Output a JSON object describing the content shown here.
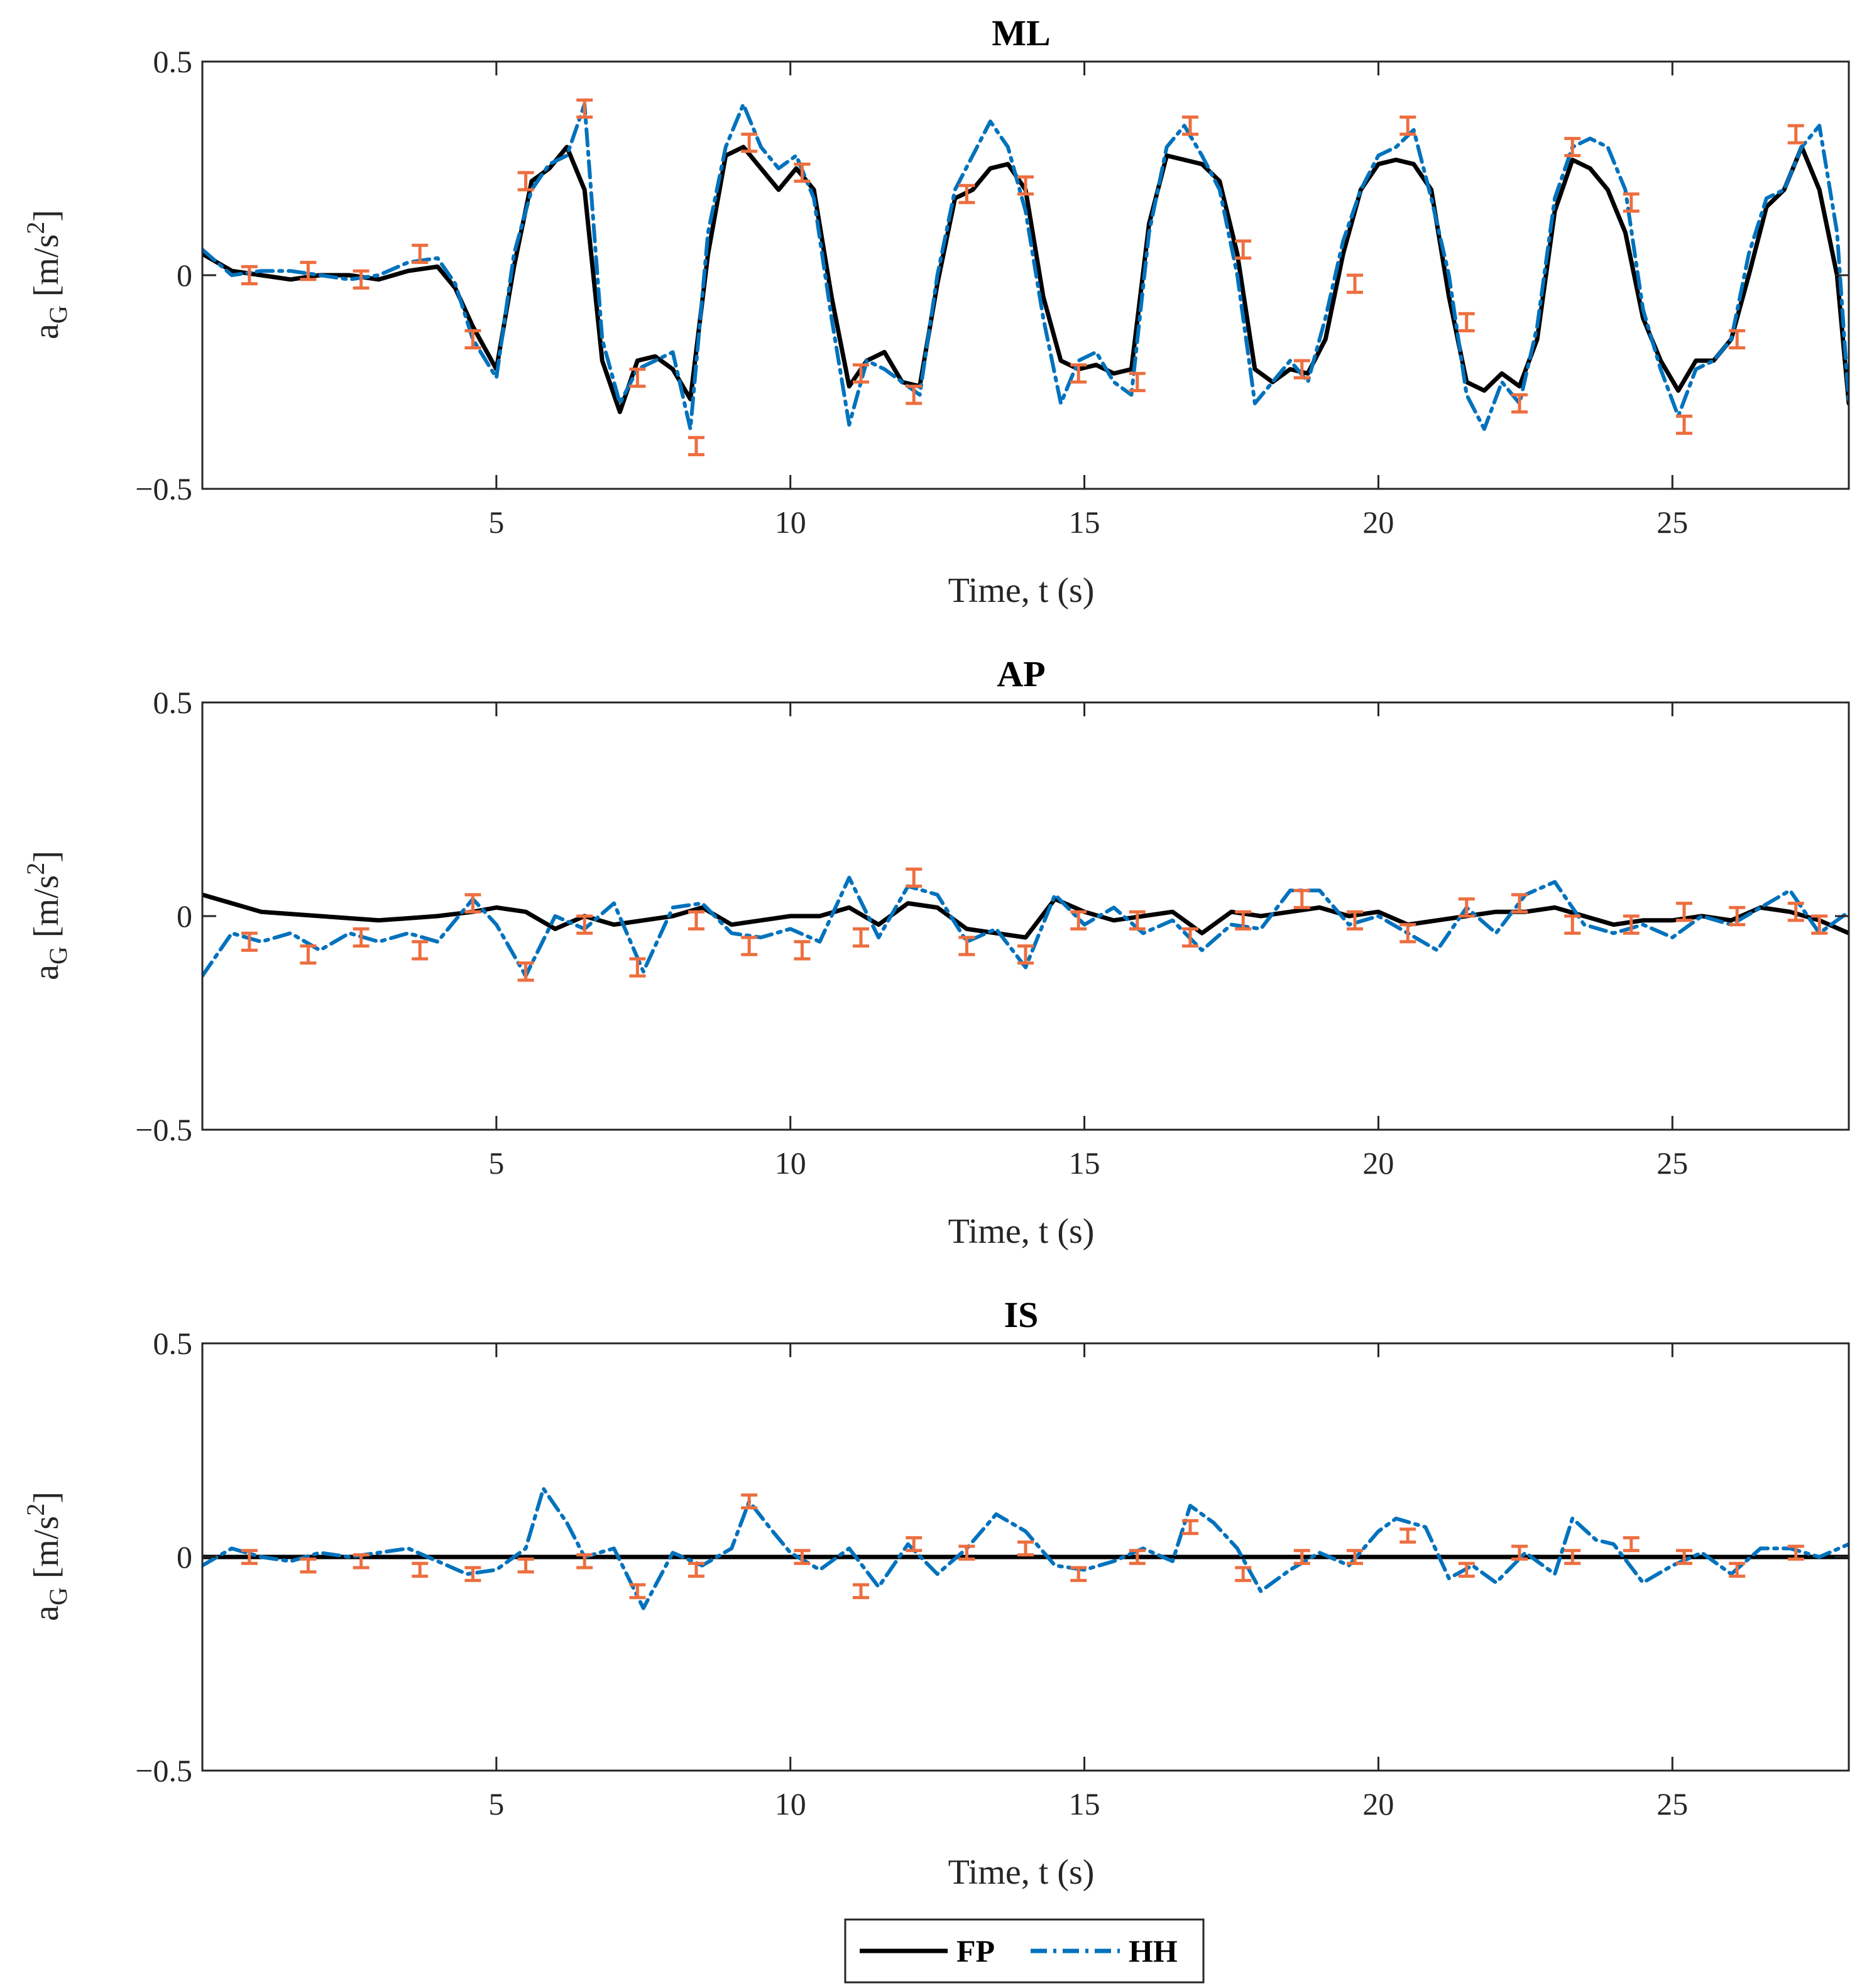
{
  "legend": {
    "fp_label": "FP",
    "hh_label": "HH"
  },
  "colors": {
    "fp": "#000000",
    "hh": "#0072BD",
    "errorbar": "#ED6E3F",
    "axis": "#262626"
  },
  "chart_data": [
    {
      "type": "line",
      "title": "ML",
      "xlabel": "Time, t (s)",
      "ylabel_base": "a",
      "ylabel_sub": "G",
      "ylabel_unit": "[m/s",
      "ylabel_sup": "2",
      "ylabel_close": "]",
      "xlim": [
        0,
        28
      ],
      "ylim": [
        -0.5,
        0.5
      ],
      "xticks": [
        5,
        10,
        15,
        20,
        25
      ],
      "xtick_labels": [
        "5",
        "10",
        "15",
        "20",
        "25"
      ],
      "yticks": [
        -0.5,
        0,
        0.5
      ],
      "ytick_labels": [
        "−0.5",
        "0",
        "0.5"
      ],
      "series": [
        {
          "name": "FP",
          "x": [
            0,
            0.5,
            1,
            1.5,
            2,
            2.5,
            3,
            3.5,
            4,
            4.3,
            4.6,
            5,
            5.3,
            5.6,
            5.9,
            6.2,
            6.5,
            6.8,
            7.1,
            7.4,
            7.7,
            8,
            8.3,
            8.6,
            8.9,
            9.2,
            9.5,
            9.8,
            10.1,
            10.4,
            10.7,
            11,
            11.3,
            11.6,
            11.9,
            12.2,
            12.5,
            12.8,
            13.1,
            13.4,
            13.7,
            14,
            14.3,
            14.6,
            14.9,
            15.2,
            15.5,
            15.8,
            16.1,
            16.4,
            16.7,
            17,
            17.3,
            17.6,
            17.9,
            18.2,
            18.5,
            18.8,
            19.1,
            19.4,
            19.7,
            20,
            20.3,
            20.6,
            20.9,
            21.2,
            21.5,
            21.8,
            22.1,
            22.4,
            22.7,
            23,
            23.3,
            23.6,
            23.9,
            24.2,
            24.5,
            24.8,
            25.1,
            25.4,
            25.7,
            26,
            26.3,
            26.6,
            26.9,
            27.2,
            27.5,
            27.8,
            28
          ],
          "values": [
            0.05,
            0.01,
            0,
            -0.01,
            0,
            0,
            -0.01,
            0.01,
            0.02,
            -0.03,
            -0.12,
            -0.22,
            0.02,
            0.22,
            0.25,
            0.3,
            0.2,
            -0.2,
            -0.32,
            -0.2,
            -0.19,
            -0.22,
            -0.29,
            0.05,
            0.28,
            0.3,
            0.25,
            0.2,
            0.25,
            0.2,
            -0.05,
            -0.26,
            -0.2,
            -0.18,
            -0.25,
            -0.26,
            -0.02,
            0.18,
            0.2,
            0.25,
            0.26,
            0.2,
            -0.05,
            -0.2,
            -0.22,
            -0.21,
            -0.23,
            -0.22,
            0.12,
            0.28,
            0.27,
            0.26,
            0.22,
            0.05,
            -0.22,
            -0.25,
            -0.22,
            -0.23,
            -0.15,
            0.05,
            0.2,
            0.26,
            0.27,
            0.26,
            0.2,
            -0.05,
            -0.25,
            -0.27,
            -0.23,
            -0.26,
            -0.15,
            0.15,
            0.27,
            0.25,
            0.2,
            0.1,
            -0.1,
            -0.2,
            -0.27,
            -0.2,
            -0.2,
            -0.15,
            0,
            0.16,
            0.2,
            0.3,
            0.2,
            0,
            -0.3
          ]
        },
        {
          "name": "HH",
          "x": [
            0,
            0.5,
            1,
            1.5,
            2,
            2.5,
            3,
            3.5,
            4,
            4.3,
            4.6,
            5,
            5.3,
            5.6,
            5.9,
            6.2,
            6.5,
            6.8,
            7.1,
            7.4,
            7.7,
            8,
            8.3,
            8.6,
            8.9,
            9.2,
            9.5,
            9.8,
            10.1,
            10.4,
            10.7,
            11,
            11.3,
            11.6,
            11.9,
            12.2,
            12.5,
            12.8,
            13.1,
            13.4,
            13.7,
            14,
            14.3,
            14.6,
            14.9,
            15.2,
            15.5,
            15.8,
            16.1,
            16.4,
            16.7,
            17,
            17.3,
            17.6,
            17.9,
            18.2,
            18.5,
            18.8,
            19.1,
            19.4,
            19.7,
            20,
            20.3,
            20.6,
            20.9,
            21.2,
            21.5,
            21.8,
            22.1,
            22.4,
            22.7,
            23,
            23.3,
            23.6,
            23.9,
            24.2,
            24.5,
            24.8,
            25.1,
            25.4,
            25.7,
            26,
            26.3,
            26.6,
            26.9,
            27.2,
            27.5,
            27.8,
            28
          ],
          "values": [
            0.06,
            0,
            0.01,
            0.01,
            0,
            -0.01,
            0,
            0.03,
            0.04,
            -0.02,
            -0.15,
            -0.24,
            0.05,
            0.2,
            0.26,
            0.28,
            0.4,
            -0.15,
            -0.3,
            -0.22,
            -0.2,
            -0.18,
            -0.36,
            0.1,
            0.3,
            0.4,
            0.3,
            0.25,
            0.28,
            0.18,
            -0.1,
            -0.35,
            -0.2,
            -0.22,
            -0.25,
            -0.28,
            0,
            0.2,
            0.28,
            0.36,
            0.3,
            0.15,
            -0.1,
            -0.3,
            -0.2,
            -0.18,
            -0.25,
            -0.28,
            0.1,
            0.3,
            0.35,
            0.28,
            0.2,
            0,
            -0.3,
            -0.25,
            -0.2,
            -0.25,
            -0.1,
            0.08,
            0.2,
            0.28,
            0.3,
            0.34,
            0.18,
            0,
            -0.28,
            -0.36,
            -0.25,
            -0.3,
            -0.12,
            0.18,
            0.3,
            0.32,
            0.3,
            0.2,
            -0.08,
            -0.22,
            -0.33,
            -0.22,
            -0.2,
            -0.15,
            0.05,
            0.18,
            0.2,
            0.3,
            0.35,
            0.1,
            -0.3
          ]
        }
      ],
      "errorbars": {
        "x": [
          0.8,
          1.8,
          2.7,
          3.7,
          4.6,
          5.5,
          6.5,
          7.4,
          8.4,
          9.3,
          10.2,
          11.2,
          12.1,
          13,
          14,
          14.9,
          15.9,
          16.8,
          17.7,
          18.7,
          19.6,
          20.5,
          21.5,
          22.4,
          23.3,
          24.3,
          25.2,
          26.1,
          27.1
        ],
        "y": [
          0,
          0.01,
          -0.01,
          0.05,
          -0.15,
          0.22,
          0.39,
          -0.24,
          -0.4,
          0.31,
          0.24,
          -0.23,
          -0.28,
          0.19,
          0.21,
          -0.23,
          -0.25,
          0.35,
          0.06,
          -0.22,
          -0.02,
          0.35,
          -0.11,
          -0.3,
          0.3,
          0.17,
          -0.35,
          -0.15,
          0.33
        ],
        "err": [
          0.02,
          0.02,
          0.02,
          0.02,
          0.02,
          0.02,
          0.02,
          0.02,
          0.02,
          0.02,
          0.02,
          0.02,
          0.02,
          0.02,
          0.02,
          0.02,
          0.02,
          0.02,
          0.02,
          0.02,
          0.02,
          0.02,
          0.02,
          0.02,
          0.02,
          0.02,
          0.02,
          0.02,
          0.02
        ]
      }
    },
    {
      "type": "line",
      "title": "AP",
      "xlabel": "Time, t (s)",
      "ylabel_base": "a",
      "ylabel_sub": "G",
      "ylabel_unit": "[m/s",
      "ylabel_sup": "2",
      "ylabel_close": "]",
      "xlim": [
        0,
        28
      ],
      "ylim": [
        -0.5,
        0.5
      ],
      "xticks": [
        5,
        10,
        15,
        20,
        25
      ],
      "xtick_labels": [
        "5",
        "10",
        "15",
        "20",
        "25"
      ],
      "yticks": [
        -0.5,
        0,
        0.5
      ],
      "ytick_labels": [
        "−0.5",
        "0",
        "0.5"
      ],
      "series": [
        {
          "name": "FP",
          "x": [
            0,
            1,
            2,
            3,
            4,
            4.6,
            5,
            5.5,
            6,
            6.5,
            7,
            7.5,
            8,
            8.5,
            9,
            9.5,
            10,
            10.5,
            11,
            11.5,
            12,
            12.5,
            13,
            13.5,
            14,
            14.5,
            15,
            15.5,
            16,
            16.5,
            17,
            17.5,
            18,
            18.5,
            19,
            19.5,
            20,
            20.5,
            21,
            21.5,
            22,
            22.5,
            23,
            23.5,
            24,
            24.5,
            25,
            25.5,
            26,
            26.5,
            27,
            27.5,
            28
          ],
          "values": [
            0.05,
            0.01,
            0,
            -0.01,
            0,
            0.01,
            0.02,
            0.01,
            -0.03,
            0,
            -0.02,
            -0.01,
            0,
            0.02,
            -0.02,
            -0.01,
            0,
            0,
            0.02,
            -0.02,
            0.03,
            0.02,
            -0.03,
            -0.04,
            -0.05,
            0.04,
            0.01,
            -0.01,
            0,
            0.01,
            -0.04,
            0.01,
            0,
            0.01,
            0.02,
            0,
            0.01,
            -0.02,
            -0.01,
            0,
            0.01,
            0.01,
            0.02,
            0,
            -0.02,
            -0.01,
            -0.01,
            0,
            -0.01,
            0.02,
            0.01,
            -0.01,
            -0.04
          ]
        },
        {
          "name": "HH",
          "x": [
            0,
            0.5,
            1,
            1.5,
            2,
            2.5,
            3,
            3.5,
            4,
            4.6,
            5,
            5.5,
            6,
            6.5,
            7,
            7.5,
            8,
            8.5,
            9,
            9.5,
            10,
            10.5,
            11,
            11.5,
            12,
            12.5,
            13,
            13.5,
            14,
            14.5,
            15,
            15.5,
            16,
            16.5,
            17,
            17.5,
            18,
            18.5,
            19,
            19.5,
            20,
            20.5,
            21,
            21.5,
            22,
            22.5,
            23,
            23.5,
            24,
            24.5,
            25,
            25.5,
            26,
            26.5,
            27,
            27.5,
            28
          ],
          "values": [
            -0.14,
            -0.04,
            -0.06,
            -0.04,
            -0.08,
            -0.04,
            -0.06,
            -0.04,
            -0.06,
            0.04,
            -0.02,
            -0.14,
            0,
            -0.03,
            0.03,
            -0.13,
            0.02,
            0.03,
            -0.04,
            -0.05,
            -0.03,
            -0.06,
            0.09,
            -0.05,
            0.07,
            0.05,
            -0.06,
            -0.03,
            -0.12,
            0.05,
            -0.02,
            0.02,
            -0.04,
            -0.01,
            -0.08,
            -0.02,
            -0.03,
            0.06,
            0.06,
            -0.02,
            0,
            -0.04,
            -0.08,
            0.02,
            -0.04,
            0.05,
            0.08,
            -0.02,
            -0.04,
            -0.02,
            -0.05,
            0,
            -0.02,
            0.02,
            0.06,
            -0.04,
            0.01
          ]
        }
      ],
      "errorbars": {
        "x": [
          0.8,
          1.8,
          2.7,
          3.7,
          4.6,
          5.5,
          6.5,
          7.4,
          8.4,
          9.3,
          10.2,
          11.2,
          12.1,
          13,
          14,
          14.9,
          15.9,
          16.8,
          17.7,
          18.7,
          19.6,
          20.5,
          21.5,
          22.4,
          23.3,
          24.3,
          25.2,
          26.1,
          27.1,
          27.5
        ],
        "y": [
          -0.06,
          -0.09,
          -0.05,
          -0.08,
          0.03,
          -0.13,
          -0.02,
          -0.12,
          -0.01,
          -0.07,
          -0.08,
          -0.05,
          0.09,
          -0.07,
          -0.09,
          -0.01,
          -0.01,
          -0.05,
          -0.01,
          0.04,
          -0.01,
          -0.04,
          0.02,
          0.03,
          -0.02,
          -0.02,
          0.01,
          0,
          0.01,
          -0.02
        ],
        "err": [
          0.02,
          0.02,
          0.02,
          0.02,
          0.02,
          0.02,
          0.02,
          0.02,
          0.02,
          0.02,
          0.02,
          0.02,
          0.02,
          0.02,
          0.02,
          0.02,
          0.02,
          0.02,
          0.02,
          0.02,
          0.02,
          0.02,
          0.02,
          0.02,
          0.02,
          0.02,
          0.02,
          0.02,
          0.02,
          0.02
        ]
      }
    },
    {
      "type": "line",
      "title": "IS",
      "xlabel": "Time, t (s)",
      "ylabel_base": "a",
      "ylabel_sub": "G",
      "ylabel_unit": "[m/s",
      "ylabel_sup": "2",
      "ylabel_close": "]",
      "xlim": [
        0,
        28
      ],
      "ylim": [
        -0.5,
        0.5
      ],
      "xticks": [
        5,
        10,
        15,
        20,
        25
      ],
      "xtick_labels": [
        "5",
        "10",
        "15",
        "20",
        "25"
      ],
      "yticks": [
        -0.5,
        0,
        0.5
      ],
      "ytick_labels": [
        "−0.5",
        "0",
        "0.5"
      ],
      "series": [
        {
          "name": "FP",
          "x": [
            0,
            28
          ],
          "values": [
            0,
            0
          ]
        },
        {
          "name": "HH",
          "x": [
            0,
            0.5,
            1,
            1.5,
            2,
            2.5,
            3,
            3.5,
            4,
            4.5,
            5,
            5.5,
            5.8,
            6.2,
            6.5,
            7,
            7.5,
            8,
            8.5,
            9,
            9.3,
            9.7,
            10,
            10.5,
            11,
            11.5,
            12,
            12.5,
            13,
            13.5,
            14,
            14.5,
            15,
            15.5,
            16,
            16.5,
            16.8,
            17.2,
            17.6,
            18,
            18.5,
            19,
            19.5,
            20,
            20.3,
            20.8,
            21.2,
            21.6,
            22,
            22.5,
            23,
            23.3,
            23.7,
            24,
            24.5,
            25,
            25.5,
            26,
            26.5,
            27,
            27.5,
            28
          ],
          "values": [
            -0.02,
            0.02,
            0,
            -0.01,
            0.01,
            0,
            0.01,
            0.02,
            -0.01,
            -0.04,
            -0.03,
            0.02,
            0.16,
            0.08,
            0,
            0.02,
            -0.12,
            0.01,
            -0.02,
            0.02,
            0.13,
            0.06,
            0.01,
            -0.03,
            0.02,
            -0.07,
            0.03,
            -0.04,
            0.02,
            0.1,
            0.06,
            -0.02,
            -0.03,
            -0.01,
            0.02,
            -0.01,
            0.12,
            0.08,
            0.02,
            -0.08,
            -0.03,
            0.01,
            -0.02,
            0.06,
            0.09,
            0.07,
            -0.05,
            -0.02,
            -0.06,
            0.01,
            -0.04,
            0.09,
            0.04,
            0.03,
            -0.06,
            -0.02,
            0.01,
            -0.04,
            0.02,
            0.02,
            0,
            0.03
          ]
        }
      ],
      "errorbars": {
        "x": [
          0.8,
          1.8,
          2.7,
          3.7,
          4.6,
          5.5,
          6.5,
          7.4,
          8.4,
          9.3,
          10.2,
          11.2,
          12.1,
          13,
          14,
          14.9,
          15.9,
          16.8,
          17.7,
          18.7,
          19.6,
          20.5,
          21.5,
          22.4,
          23.3,
          24.3,
          25.2,
          26.1,
          27.1
        ],
        "y": [
          0,
          -0.02,
          -0.01,
          -0.03,
          -0.04,
          -0.02,
          -0.01,
          -0.08,
          -0.03,
          0.13,
          0,
          -0.08,
          0.03,
          0.01,
          0.02,
          -0.04,
          0,
          0.07,
          -0.04,
          0,
          0,
          0.05,
          -0.03,
          0.01,
          0,
          0.03,
          0,
          -0.03,
          0.01
        ],
        "err": [
          0.015,
          0.015,
          0.015,
          0.015,
          0.015,
          0.015,
          0.015,
          0.015,
          0.015,
          0.015,
          0.015,
          0.015,
          0.015,
          0.015,
          0.015,
          0.015,
          0.015,
          0.015,
          0.015,
          0.015,
          0.015,
          0.015,
          0.015,
          0.015,
          0.015,
          0.015,
          0.015,
          0.015,
          0.015
        ]
      }
    }
  ]
}
